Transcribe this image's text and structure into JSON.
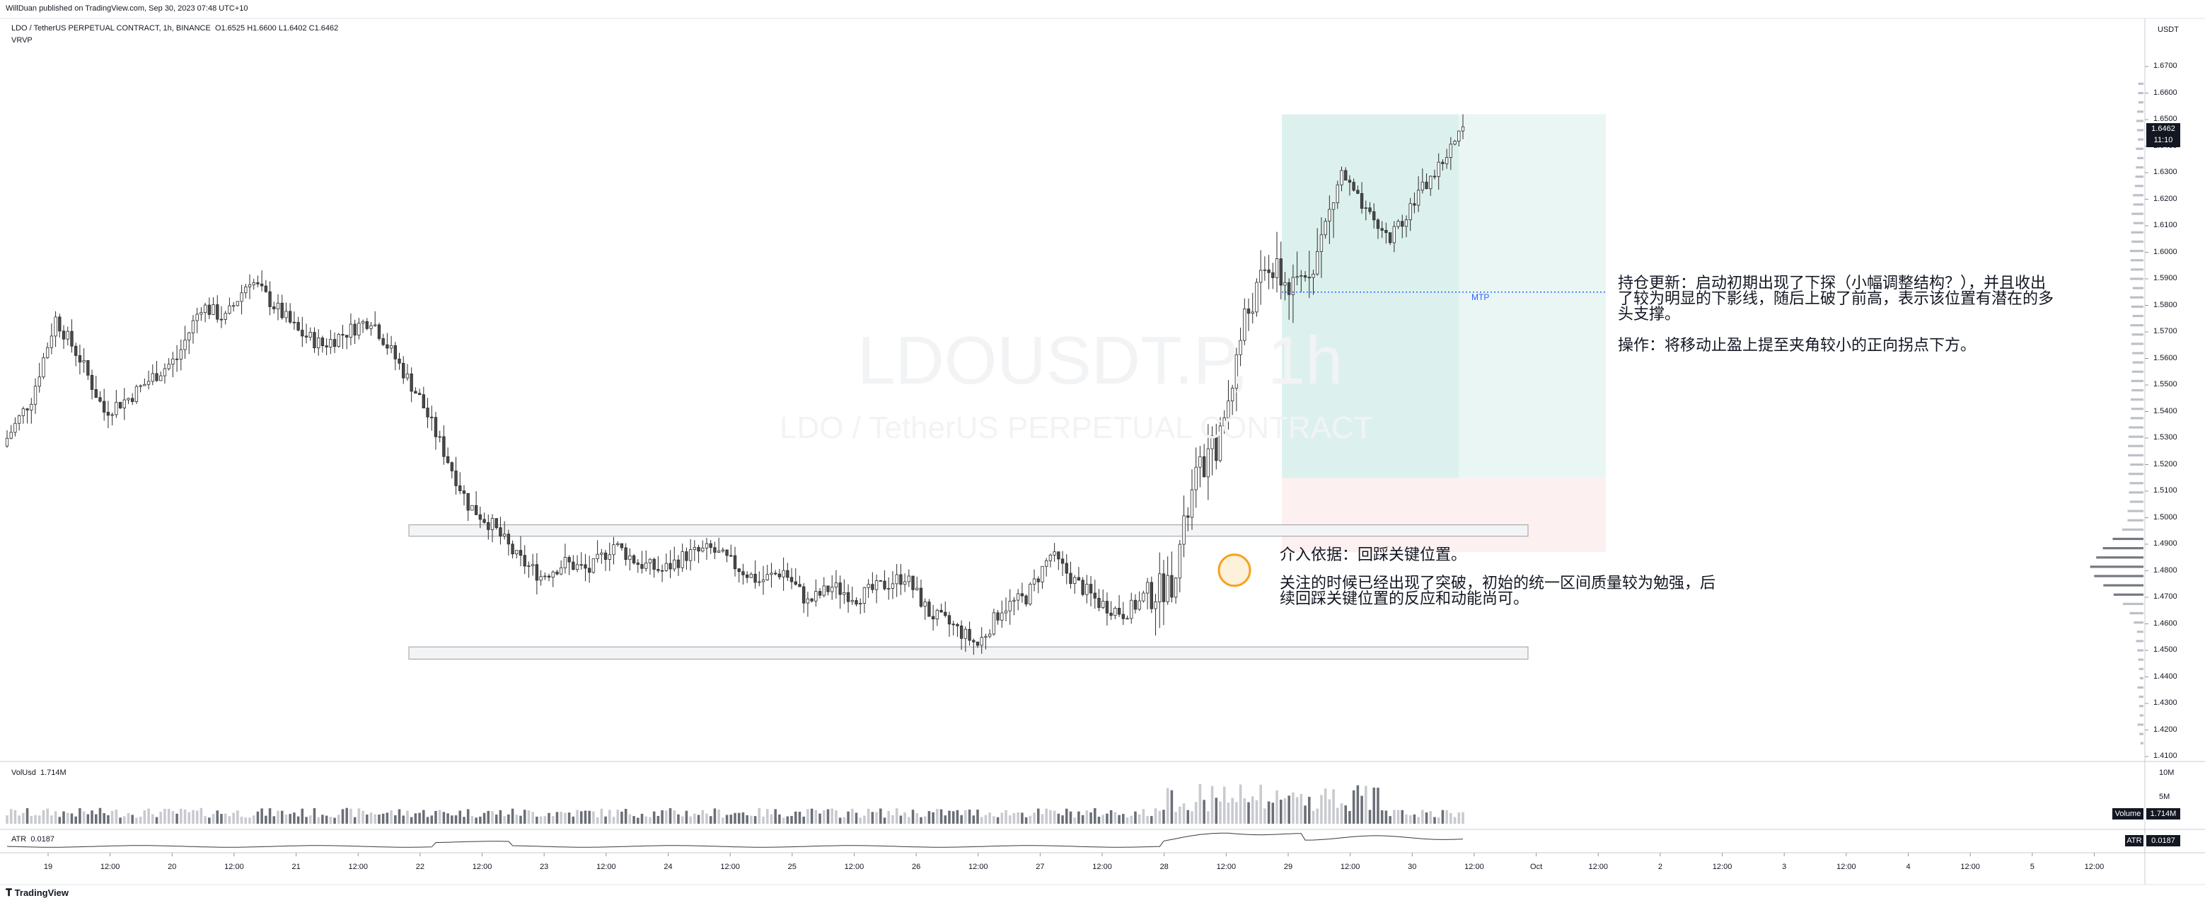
{
  "header": {
    "published": "WillDuan published on TradingView.com, Sep 30, 2023 07:48 UTC+10",
    "symbol_line": "LDO / TetherUS PERPETUAL CONTRACT, 1h, BINANCE",
    "ohlc": "O1.6525  H1.6600  L1.6402  C1.6462",
    "indicator": "VRVP"
  },
  "watermark": {
    "ticker": "LDOUSDT.P, 1h",
    "name": "LDO / TetherUS PERPETUAL CONTRACT"
  },
  "price_axis": {
    "currency": "USDT",
    "ticks": [
      "1.6700",
      "1.6600",
      "1.6500",
      "1.6400",
      "1.6300",
      "1.6200",
      "1.6100",
      "1.6000",
      "1.5900",
      "1.5800",
      "1.5700",
      "1.5600",
      "1.5500",
      "1.5400",
      "1.5300",
      "1.5200",
      "1.5100",
      "1.5000",
      "1.4900",
      "1.4800",
      "1.4700",
      "1.4600",
      "1.4500",
      "1.4400",
      "1.4300",
      "1.4200",
      "1.4100"
    ],
    "last_price": "1.6462",
    "countdown": "11:10"
  },
  "time_axis": {
    "labels": [
      "19",
      "12:00",
      "20",
      "12:00",
      "21",
      "12:00",
      "22",
      "12:00",
      "23",
      "12:00",
      "24",
      "12:00",
      "25",
      "12:00",
      "26",
      "12:00",
      "27",
      "12:00",
      "28",
      "12:00",
      "29",
      "12:00",
      "30",
      "12:00",
      "Oct",
      "12:00",
      "2",
      "12:00",
      "3",
      "12:00",
      "4",
      "12:00",
      "5",
      "12:00"
    ]
  },
  "volume_pane": {
    "label": "VolUsd",
    "value": "1.714M",
    "axis_ticks": [
      "10M",
      "5M"
    ],
    "badge_label": "Volume",
    "badge_value": "1.714M"
  },
  "atr_pane": {
    "label": "ATR",
    "value": "0.0187",
    "badge_label": "ATR",
    "badge_value": "0.0187"
  },
  "annotations": {
    "mtp": "MTP",
    "update_line1": "持仓更新：启动初期出现了下探（小幅调整结构？），并且收出",
    "update_line2": "了较为明显的下影线，随后上破了前高，表示该位置有潜在的多",
    "update_line3": "头支撑。",
    "operation": "操作：将移动止盈上提至夹角较小的正向拐点下方。",
    "entry_title": "介入依据：回踩关键位置。",
    "entry_line1": "关注的时候已经出现了突破，初始的统一区间质量较为勉强，后",
    "entry_line2": "续回踩关键位置的反应和动能尚可。"
  },
  "footer": {
    "brand": "TradingView"
  },
  "colors": {
    "up": "#ffffff",
    "down": "#4a4a4a",
    "wick": "#2a2a2a",
    "profit_zone": "#d7efeb",
    "loss_zone": "#fbe9e9",
    "mtp_line": "#2962ff",
    "circle": "#f7a21b",
    "vp_bar": "#b2b5be",
    "vp_bar_dark": "#5d606b"
  },
  "chart_data": {
    "type": "candlestick",
    "symbol": "LDOUSDT.P",
    "interval": "1h",
    "ylim": [
      1.405,
      1.682
    ],
    "candles_close_path": [
      [
        0,
        1.53
      ],
      [
        6,
        1.545
      ],
      [
        12,
        1.575
      ],
      [
        18,
        1.56
      ],
      [
        24,
        1.54
      ],
      [
        30,
        1.545
      ],
      [
        36,
        1.553
      ],
      [
        42,
        1.56
      ],
      [
        48,
        1.58
      ],
      [
        54,
        1.575
      ],
      [
        60,
        1.59
      ],
      [
        66,
        1.58
      ],
      [
        72,
        1.57
      ],
      [
        78,
        1.565
      ],
      [
        84,
        1.57
      ],
      [
        90,
        1.575
      ],
      [
        96,
        1.56
      ],
      [
        102,
        1.545
      ],
      [
        108,
        1.525
      ],
      [
        114,
        1.505
      ],
      [
        120,
        1.497
      ],
      [
        126,
        1.485
      ],
      [
        132,
        1.478
      ],
      [
        138,
        1.483
      ],
      [
        144,
        1.48
      ],
      [
        150,
        1.49
      ],
      [
        156,
        1.483
      ],
      [
        162,
        1.48
      ],
      [
        168,
        1.486
      ],
      [
        174,
        1.488
      ],
      [
        180,
        1.482
      ],
      [
        186,
        1.476
      ],
      [
        192,
        1.48
      ],
      [
        198,
        1.468
      ],
      [
        204,
        1.474
      ],
      [
        210,
        1.47
      ],
      [
        216,
        1.474
      ],
      [
        222,
        1.478
      ],
      [
        228,
        1.464
      ],
      [
        234,
        1.459
      ],
      [
        240,
        1.452
      ],
      [
        246,
        1.466
      ],
      [
        252,
        1.47
      ],
      [
        258,
        1.486
      ],
      [
        264,
        1.476
      ],
      [
        270,
        1.468
      ],
      [
        276,
        1.464
      ],
      [
        282,
        1.47
      ],
      [
        288,
        1.476
      ],
      [
        294,
        1.515
      ],
      [
        300,
        1.53
      ],
      [
        306,
        1.575
      ],
      [
        312,
        1.595
      ],
      [
        318,
        1.585
      ],
      [
        324,
        1.6
      ],
      [
        330,
        1.63
      ],
      [
        336,
        1.614
      ],
      [
        342,
        1.605
      ],
      [
        348,
        1.62
      ],
      [
        354,
        1.632
      ],
      [
        360,
        1.646
      ]
    ],
    "key_levels": [
      {
        "name": "upper-zone",
        "top": 1.4973,
        "bottom": 1.493
      },
      {
        "name": "lower-zone",
        "top": 1.4513,
        "bottom": 1.4467
      }
    ],
    "mtp": 1.585,
    "long_position": {
      "entry": 1.515,
      "target": 1.652,
      "stop": 1.487
    }
  }
}
